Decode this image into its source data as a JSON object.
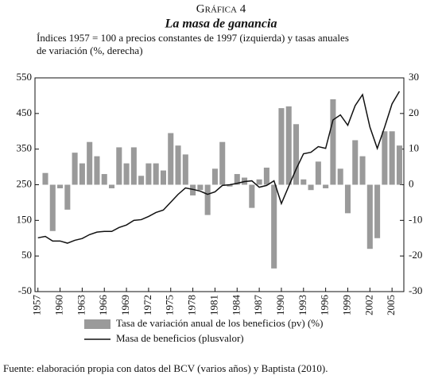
{
  "chart_data": {
    "type": "bar+line",
    "label": "Gráfica 4",
    "title": "La masa de ganancia",
    "subtitle": [
      "Índices 1957 = 100 a precios constantes de 1997 (izquierda) y tasas anuales",
      "de variación (%, derecha)"
    ],
    "x": [
      1957,
      1958,
      1959,
      1960,
      1961,
      1962,
      1963,
      1964,
      1965,
      1966,
      1967,
      1968,
      1969,
      1970,
      1971,
      1972,
      1973,
      1974,
      1975,
      1976,
      1977,
      1978,
      1979,
      1980,
      1981,
      1982,
      1983,
      1984,
      1985,
      1986,
      1987,
      1988,
      1989,
      1990,
      1991,
      1992,
      1993,
      1994,
      1995,
      1996,
      1997,
      1998,
      1999,
      2000,
      2001,
      2002,
      2003,
      2004,
      2005,
      2006
    ],
    "xlim": [
      1956.6,
      2006.6
    ],
    "xticks": [
      1957,
      1960,
      1963,
      1966,
      1969,
      1972,
      1975,
      1978,
      1981,
      1984,
      1987,
      1990,
      1993,
      1996,
      1999,
      2002,
      2005
    ],
    "ylim": [
      -50,
      550
    ],
    "yticks": [
      -50,
      50,
      150,
      250,
      350,
      450,
      550
    ],
    "y2lim": [
      -30,
      30
    ],
    "y2ticks": [
      -30,
      -20,
      -10,
      0,
      10,
      20,
      30
    ],
    "series": [
      {
        "name": "Tasa de variación anual de los beneficios (pv) (%)",
        "type": "bar",
        "axis": "y2",
        "color": "#9a9a9a",
        "values": [
          null,
          3.3,
          -13,
          -1,
          -7,
          9,
          6,
          12,
          8,
          3,
          -1,
          10.5,
          6,
          10.5,
          2.5,
          6,
          6,
          4,
          14.5,
          11,
          8.5,
          -3,
          -1.5,
          -8.5,
          4.5,
          12,
          -0.5,
          3,
          2,
          -6.5,
          1.5,
          4.8,
          -23.5,
          21.5,
          22,
          17,
          1.5,
          -1.5,
          6.5,
          -1,
          24,
          4.5,
          -8,
          12.5,
          8,
          -18,
          -15,
          15,
          15,
          11
        ]
      },
      {
        "name": "Masa de beneficios (plusvalor)",
        "type": "line",
        "color": "#111111",
        "values": [
          101,
          105,
          92,
          92,
          86,
          94,
          99,
          110,
          117,
          119,
          119,
          130,
          137,
          150,
          152,
          161,
          172,
          179,
          201,
          223,
          241,
          237,
          232,
          223,
          230,
          248,
          250,
          254,
          259,
          261,
          243,
          248,
          261,
          197,
          246,
          294,
          337,
          341,
          357,
          352,
          432,
          446,
          417,
          472,
          503,
          412,
          352,
          412,
          477,
          512
        ]
      }
    ],
    "source": "Fuente: elaboración propia con datos del BCV (varios años) y Baptista (2010)."
  }
}
